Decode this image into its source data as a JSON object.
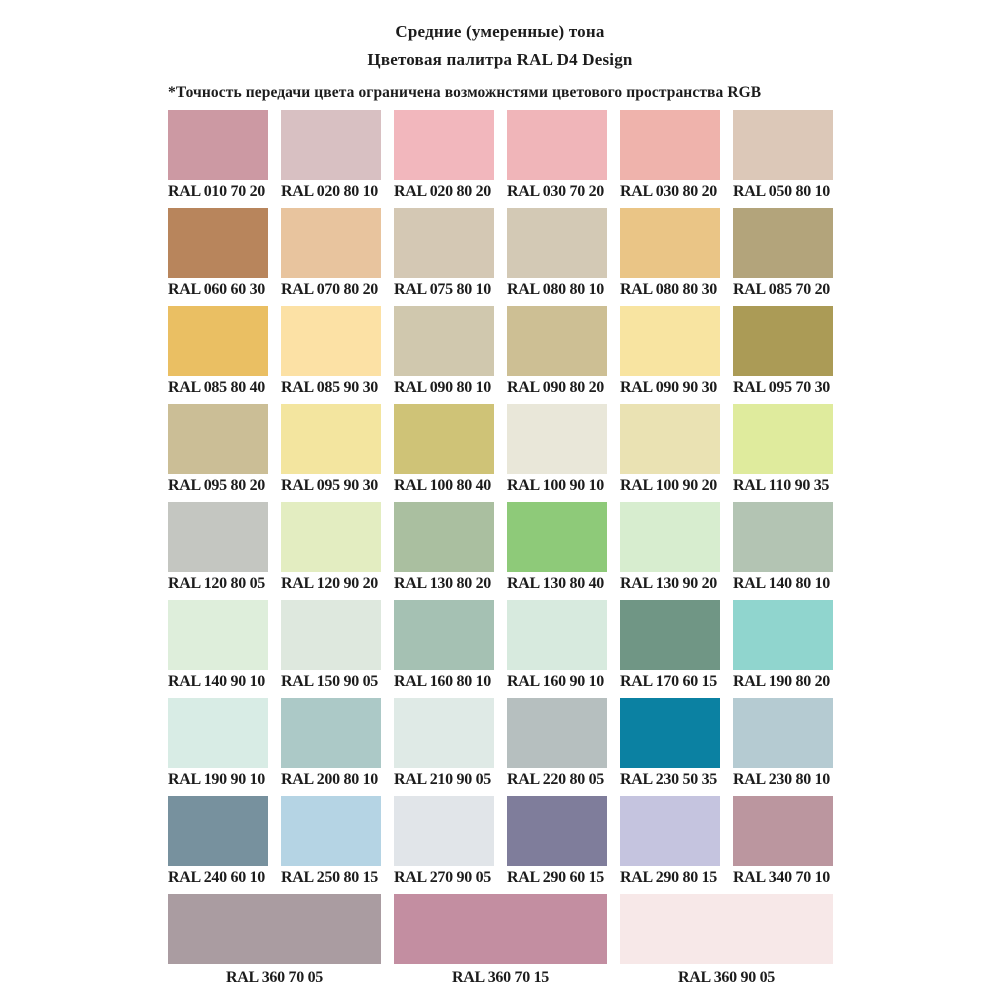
{
  "header": {
    "title": "Средние (умеренные) тона",
    "subtitle": "Цветовая палитра RAL D4 Design",
    "note": "*Точность передачи цвета ограничена возможнстями цветового пространства RGB"
  },
  "colors": {
    "background": "#ffffff",
    "text": "#1c1c1c"
  },
  "swatches": [
    {
      "code": "RAL 010 70 20",
      "color": "#cc99a3"
    },
    {
      "code": "RAL 020 80 10",
      "color": "#d8c0c2"
    },
    {
      "code": "RAL 020 80 20",
      "color": "#f2b7bd"
    },
    {
      "code": "RAL 030 70 20",
      "color": "#f0b5b9"
    },
    {
      "code": "RAL 030 80 20",
      "color": "#efb3ac"
    },
    {
      "code": "RAL 050 80 10",
      "color": "#dcc8b8"
    },
    {
      "code": "RAL 060 60 30",
      "color": "#b8855c"
    },
    {
      "code": "RAL 070 80 20",
      "color": "#e8c49e"
    },
    {
      "code": "RAL 075 80 10",
      "color": "#d4c8b4"
    },
    {
      "code": "RAL 080 80 10",
      "color": "#d3c9b5"
    },
    {
      "code": "RAL 080 80 30",
      "color": "#eac586"
    },
    {
      "code": "RAL 085 70 20",
      "color": "#b3a47b"
    },
    {
      "code": "RAL 085 80 40",
      "color": "#eabf63"
    },
    {
      "code": "RAL 085 90 30",
      "color": "#fce1a5"
    },
    {
      "code": "RAL 090 80 10",
      "color": "#d0c8ae"
    },
    {
      "code": "RAL 090 80 20",
      "color": "#cdbf94"
    },
    {
      "code": "RAL 090 90 30",
      "color": "#f8e4a1"
    },
    {
      "code": "RAL 095 70 30",
      "color": "#ab9b56"
    },
    {
      "code": "RAL 095 80 20",
      "color": "#cbbe96"
    },
    {
      "code": "RAL 095 90 30",
      "color": "#f3e59f"
    },
    {
      "code": "RAL 100 80 40",
      "color": "#cfc377"
    },
    {
      "code": "RAL 100 90 10",
      "color": "#e9e7d9"
    },
    {
      "code": "RAL 100 90 20",
      "color": "#eae2b3"
    },
    {
      "code": "RAL 110 90 35",
      "color": "#dfeb9d"
    },
    {
      "code": "RAL 120 80 05",
      "color": "#c4c6c1"
    },
    {
      "code": "RAL 120 90 20",
      "color": "#e3edc1"
    },
    {
      "code": "RAL 130 80 20",
      "color": "#aabfa0"
    },
    {
      "code": "RAL 130 80 40",
      "color": "#8eca79"
    },
    {
      "code": "RAL 130 90 20",
      "color": "#d7edcf"
    },
    {
      "code": "RAL 140 80 10",
      "color": "#b3c4b3"
    },
    {
      "code": "RAL 140 90 10",
      "color": "#deeedb"
    },
    {
      "code": "RAL 150 90 05",
      "color": "#dee8de"
    },
    {
      "code": "RAL 160 80 10",
      "color": "#a5c1b3"
    },
    {
      "code": "RAL 160 90 10",
      "color": "#d7eade"
    },
    {
      "code": "RAL 170 60 15",
      "color": "#709685"
    },
    {
      "code": "RAL 190 80 20",
      "color": "#90d5ce"
    },
    {
      "code": "RAL 190 90 10",
      "color": "#d8ece5"
    },
    {
      "code": "RAL 200 80 10",
      "color": "#acc9c7"
    },
    {
      "code": "RAL 210 90 05",
      "color": "#dfeae6"
    },
    {
      "code": "RAL 220 80 05",
      "color": "#b6bfbf"
    },
    {
      "code": "RAL 230 50 35",
      "color": "#0b81a2"
    },
    {
      "code": "RAL 230 80 10",
      "color": "#b5cbd2"
    },
    {
      "code": "RAL 240 60 10",
      "color": "#77919e"
    },
    {
      "code": "RAL 250 80 15",
      "color": "#b5d4e4"
    },
    {
      "code": "RAL 270 90 05",
      "color": "#e1e5e9"
    },
    {
      "code": "RAL 290 60 15",
      "color": "#7f7d9b"
    },
    {
      "code": "RAL 290 80 15",
      "color": "#c5c4df"
    },
    {
      "code": "RAL 340 70 10",
      "color": "#bb969f"
    }
  ],
  "wide_swatches": [
    {
      "code": "RAL 360 70 05",
      "color": "#aa9ca1"
    },
    {
      "code": "RAL 360 70 15",
      "color": "#c38ea1"
    },
    {
      "code": "RAL 360 90 05",
      "color": "#f7e8e8"
    }
  ]
}
